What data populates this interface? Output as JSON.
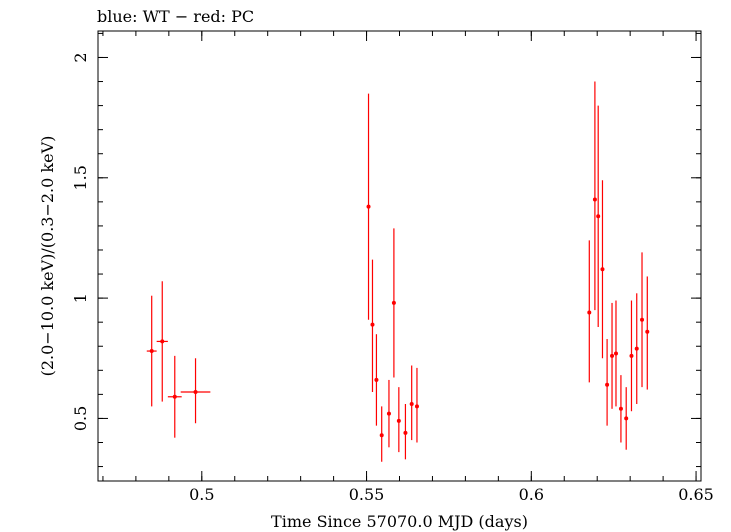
{
  "chart_data": {
    "type": "scatter",
    "title": "blue: WT − red: PC",
    "xlabel": "Time Since 57070.0 MJD (days)",
    "ylabel": "(2.0−10.0 keV)/(0.3−2.0 keV)",
    "xlim": [
      0.4685,
      0.6515
    ],
    "ylim": [
      0.24,
      2.11
    ],
    "x_ticks": [
      {
        "value": 0.5,
        "label": "0.5"
      },
      {
        "value": 0.55,
        "label": "0.55"
      },
      {
        "value": 0.6,
        "label": "0.6"
      },
      {
        "value": 0.65,
        "label": "0.65"
      }
    ],
    "y_ticks": [
      {
        "value": 0.5,
        "label": "0.5"
      },
      {
        "value": 1.0,
        "label": "1"
      },
      {
        "value": 1.5,
        "label": "1.5"
      },
      {
        "value": 2.0,
        "label": "2"
      }
    ],
    "x_minor_step": 0.01,
    "y_minor_step": 0.1,
    "grid": false,
    "series": [
      {
        "name": "PC",
        "color": "#ff0000",
        "points": [
          {
            "x": 0.4848,
            "y": 0.78,
            "xerr": 0.0015,
            "ylo": 0.55,
            "yhi": 1.01
          },
          {
            "x": 0.488,
            "y": 0.82,
            "xerr": 0.0017,
            "ylo": 0.57,
            "yhi": 1.07
          },
          {
            "x": 0.4918,
            "y": 0.59,
            "xerr": 0.0021,
            "ylo": 0.42,
            "yhi": 0.76
          },
          {
            "x": 0.4981,
            "y": 0.61,
            "xerr": 0.0045,
            "ylo": 0.48,
            "yhi": 0.75
          },
          {
            "x": 0.5506,
            "y": 1.38,
            "xerr": 0.0003,
            "ylo": 0.91,
            "yhi": 1.85
          },
          {
            "x": 0.5518,
            "y": 0.89,
            "xerr": 0.0003,
            "ylo": 0.61,
            "yhi": 1.16
          },
          {
            "x": 0.553,
            "y": 0.66,
            "xerr": 0.0004,
            "ylo": 0.47,
            "yhi": 0.85
          },
          {
            "x": 0.5546,
            "y": 0.43,
            "xerr": 0.0005,
            "ylo": 0.32,
            "yhi": 0.55
          },
          {
            "x": 0.5568,
            "y": 0.52,
            "xerr": 0.0005,
            "ylo": 0.38,
            "yhi": 0.66
          },
          {
            "x": 0.5583,
            "y": 0.98,
            "xerr": 0.0003,
            "ylo": 0.67,
            "yhi": 1.29
          },
          {
            "x": 0.5598,
            "y": 0.49,
            "xerr": 0.0005,
            "ylo": 0.36,
            "yhi": 0.63
          },
          {
            "x": 0.5618,
            "y": 0.44,
            "xerr": 0.0005,
            "ylo": 0.33,
            "yhi": 0.56
          },
          {
            "x": 0.5637,
            "y": 0.56,
            "xerr": 0.0005,
            "ylo": 0.41,
            "yhi": 0.72
          },
          {
            "x": 0.5653,
            "y": 0.55,
            "xerr": 0.0005,
            "ylo": 0.4,
            "yhi": 0.71
          },
          {
            "x": 0.6176,
            "y": 0.94,
            "xerr": 0.0003,
            "ylo": 0.65,
            "yhi": 1.24
          },
          {
            "x": 0.6193,
            "y": 1.41,
            "xerr": 0.0003,
            "ylo": 0.95,
            "yhi": 1.9
          },
          {
            "x": 0.6203,
            "y": 1.34,
            "xerr": 0.0003,
            "ylo": 0.88,
            "yhi": 1.8
          },
          {
            "x": 0.6216,
            "y": 1.12,
            "xerr": 0.0003,
            "ylo": 0.75,
            "yhi": 1.49
          },
          {
            "x": 0.623,
            "y": 0.64,
            "xerr": 0.0003,
            "ylo": 0.47,
            "yhi": 0.83
          },
          {
            "x": 0.6245,
            "y": 0.76,
            "xerr": 0.0003,
            "ylo": 0.54,
            "yhi": 0.98
          },
          {
            "x": 0.6257,
            "y": 0.77,
            "xerr": 0.0003,
            "ylo": 0.55,
            "yhi": 0.99
          },
          {
            "x": 0.6272,
            "y": 0.54,
            "xerr": 0.0003,
            "ylo": 0.4,
            "yhi": 0.68
          },
          {
            "x": 0.6288,
            "y": 0.5,
            "xerr": 0.0003,
            "ylo": 0.37,
            "yhi": 0.63
          },
          {
            "x": 0.6304,
            "y": 0.76,
            "xerr": 0.0003,
            "ylo": 0.53,
            "yhi": 0.99
          },
          {
            "x": 0.632,
            "y": 0.79,
            "xerr": 0.0003,
            "ylo": 0.56,
            "yhi": 1.02
          },
          {
            "x": 0.6336,
            "y": 0.91,
            "xerr": 0.0003,
            "ylo": 0.63,
            "yhi": 1.19
          },
          {
            "x": 0.6352,
            "y": 0.86,
            "xerr": 0.0003,
            "ylo": 0.62,
            "yhi": 1.09
          }
        ]
      }
    ]
  }
}
